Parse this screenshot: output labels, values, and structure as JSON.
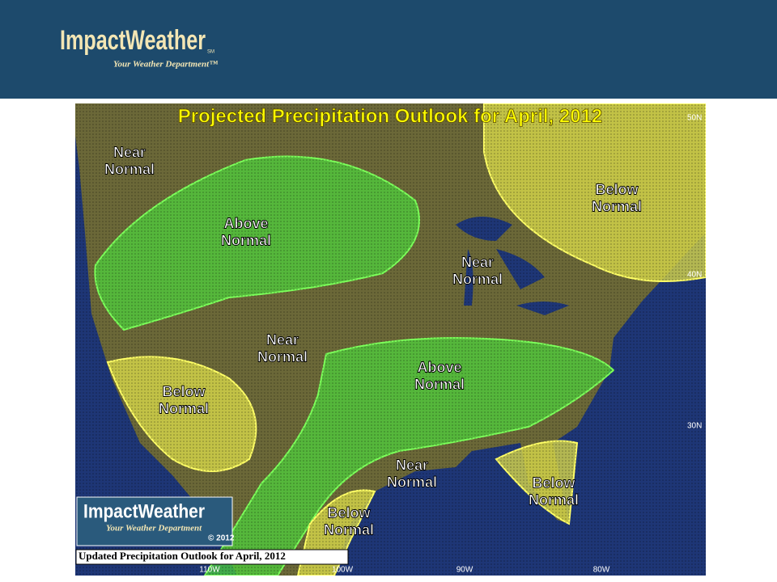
{
  "header": {
    "logo": "ImpactWeather",
    "service_mark": "SM",
    "tagline": "Your Weather Department™"
  },
  "map": {
    "title": "Projected Precipitation Outlook for April, 2012",
    "regions": [
      {
        "lines": [
          "Near",
          "Normal"
        ]
      },
      {
        "lines": [
          "Above",
          "Normal"
        ]
      },
      {
        "lines": [
          "Below",
          "Normal"
        ]
      },
      {
        "lines": [
          "Near",
          "Normal"
        ]
      },
      {
        "lines": [
          "Near",
          "Normal"
        ]
      },
      {
        "lines": [
          "Above",
          "Normal"
        ]
      },
      {
        "lines": [
          "Below",
          "Normal"
        ]
      },
      {
        "lines": [
          "Near",
          "Normal"
        ]
      },
      {
        "lines": [
          "Below",
          "Normal"
        ]
      },
      {
        "lines": [
          "Below",
          "Normal"
        ]
      }
    ],
    "latitudes": [
      "50N",
      "40N",
      "30N"
    ],
    "longitudes": [
      "110W",
      "100W",
      "90W",
      "80W"
    ],
    "inset_logo": {
      "logo": "ImpactWeather",
      "tagline": "Your Weather Department",
      "copyright": "© 2012"
    },
    "caption": "Updated Precipitation Outlook for April, 2012"
  }
}
